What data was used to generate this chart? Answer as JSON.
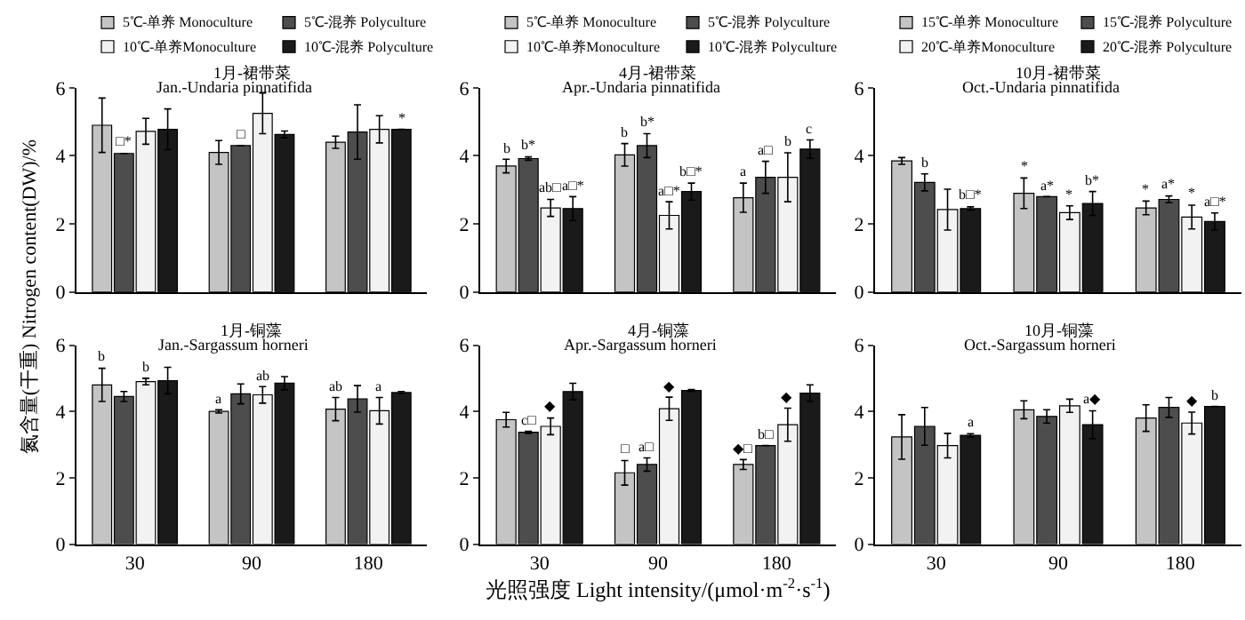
{
  "chart_data": [
    {
      "type": "bar",
      "title": "1月-裙带菜",
      "subtitle": "Jan.-Undaria pinnatifida",
      "ylabel": "氮含量(干重) Nitrogen content(DW)/%",
      "categories": [
        "30",
        "90",
        "180"
      ],
      "ylim": [
        0,
        6
      ],
      "yticks": [
        0,
        2,
        4,
        6
      ],
      "tick_labels": "y",
      "legend": "top",
      "series": [
        {
          "name": "5℃-单养 Monoculture",
          "color": "#c4c4c4",
          "values": [
            4.9,
            4.1,
            4.4
          ],
          "errors": [
            0.8,
            0.35,
            0.18
          ],
          "value_labels": [
            null,
            null,
            null
          ]
        },
        {
          "name": "5℃-混养 Polyculture",
          "color": "#4d4d4d",
          "values": [
            4.07,
            4.3,
            4.7
          ],
          "errors": [
            null,
            null,
            0.8
          ],
          "value_labels": [
            "□*",
            "□",
            null
          ]
        },
        {
          "name": "10℃-单养Monoculture",
          "color": "#f2f2f2",
          "values": [
            4.72,
            5.25,
            4.78
          ],
          "errors": [
            0.38,
            0.6,
            0.4
          ],
          "value_labels": [
            null,
            null,
            null
          ]
        },
        {
          "name": "10℃-混养 Polyculture",
          "color": "#1a1a1a",
          "values": [
            4.78,
            4.63,
            4.78
          ],
          "errors": [
            0.6,
            0.1,
            null
          ],
          "value_labels": [
            null,
            null,
            "*"
          ]
        }
      ]
    },
    {
      "type": "bar",
      "title": "4月-裙带菜",
      "subtitle": "Apr.-Undaria pinnatifida",
      "categories": [
        "30",
        "90",
        "180"
      ],
      "ylim": [
        0,
        6
      ],
      "yticks": [
        0,
        2,
        4,
        6
      ],
      "tick_labels": "y",
      "legend": "top",
      "series": [
        {
          "name": "5℃-单养 Monoculture",
          "color": "#c4c4c4",
          "values": [
            3.7,
            4.03,
            2.77
          ],
          "errors": [
            0.2,
            0.33,
            0.43
          ],
          "value_labels": [
            "b",
            "b",
            "a"
          ]
        },
        {
          "name": "5℃-混养 Polyculture",
          "color": "#4d4d4d",
          "values": [
            3.92,
            4.3,
            3.37
          ],
          "errors": [
            0.05,
            0.35,
            0.47
          ],
          "value_labels": [
            "b*",
            "b*",
            "a□"
          ]
        },
        {
          "name": "10℃-单养Monoculture",
          "color": "#f2f2f2",
          "values": [
            2.47,
            2.25,
            3.37
          ],
          "errors": [
            0.25,
            0.4,
            0.72
          ],
          "value_labels": [
            "ab□",
            "a□*",
            "b"
          ]
        },
        {
          "name": "10℃-混养 Polyculture",
          "color": "#1a1a1a",
          "values": [
            2.45,
            2.95,
            4.2
          ],
          "errors": [
            0.35,
            0.25,
            0.27
          ],
          "value_labels": [
            "a□*",
            "b□*",
            "c"
          ]
        }
      ]
    },
    {
      "type": "bar",
      "title": "10月-裙带菜",
      "subtitle": "Oct.-Undaria pinnatifida",
      "categories": [
        "30",
        "90",
        "180"
      ],
      "ylim": [
        0,
        6
      ],
      "yticks": [
        0,
        2,
        4,
        6
      ],
      "tick_labels": "y",
      "legend": "top",
      "series": [
        {
          "name": "15℃-单养 Monoculture",
          "color": "#c4c4c4",
          "values": [
            3.85,
            2.9,
            2.47
          ],
          "errors": [
            0.1,
            0.45,
            0.2
          ],
          "value_labels": [
            null,
            "*",
            "*"
          ]
        },
        {
          "name": "15℃-混养 Polyculture",
          "color": "#4d4d4d",
          "values": [
            3.22,
            2.8,
            2.72
          ],
          "errors": [
            0.25,
            null,
            0.1
          ],
          "value_labels": [
            "b",
            "a*",
            "a*"
          ]
        },
        {
          "name": "20℃-单养Monoculture",
          "color": "#f2f2f2",
          "values": [
            2.42,
            2.33,
            2.2
          ],
          "errors": [
            0.6,
            0.2,
            0.35
          ],
          "value_labels": [
            null,
            "*",
            "*"
          ]
        },
        {
          "name": "20℃-混养 Polyculture",
          "color": "#1a1a1a",
          "values": [
            2.45,
            2.6,
            2.07
          ],
          "errors": [
            0.05,
            0.35,
            0.25
          ],
          "value_labels": [
            "b□*",
            "b*",
            "a□*"
          ]
        }
      ]
    },
    {
      "type": "bar",
      "title": "1月-铜藻",
      "subtitle": "Jan.-Sargassum horneri",
      "categories": [
        "30",
        "90",
        "180"
      ],
      "ylim": [
        0,
        6
      ],
      "yticks": [
        0,
        2,
        4,
        6
      ],
      "series": [
        {
          "color": "#c4c4c4",
          "values": [
            4.8,
            4.0,
            4.07
          ],
          "errors": [
            0.5,
            0.05,
            0.35
          ],
          "value_labels": [
            "b",
            "a",
            "ab"
          ]
        },
        {
          "color": "#4d4d4d",
          "values": [
            4.45,
            4.53,
            4.38
          ],
          "errors": [
            0.15,
            0.3,
            0.4
          ],
          "value_labels": [
            null,
            null,
            null
          ]
        },
        {
          "color": "#f2f2f2",
          "values": [
            4.9,
            4.5,
            4.02
          ],
          "errors": [
            0.1,
            0.25,
            0.4
          ],
          "value_labels": [
            "b",
            "ab",
            "a"
          ]
        },
        {
          "color": "#1a1a1a",
          "values": [
            4.93,
            4.85,
            4.57
          ],
          "errors": [
            0.4,
            0.2,
            0.03
          ],
          "value_labels": [
            null,
            null,
            null
          ]
        }
      ]
    },
    {
      "type": "bar",
      "title": "4月-铜藻",
      "subtitle": "Apr.-Sargassum horneri",
      "xlabel": "光照强度 Light intensity/(μmol·m$^{-2}$·s$^{-1}$)",
      "categories": [
        "30",
        "90",
        "180"
      ],
      "ylim": [
        0,
        6
      ],
      "yticks": [
        0,
        2,
        4,
        6
      ],
      "series": [
        {
          "color": "#c4c4c4",
          "values": [
            3.75,
            2.15,
            2.4
          ],
          "errors": [
            0.22,
            0.37,
            0.15
          ],
          "value_labels": [
            null,
            "□",
            "◆□"
          ]
        },
        {
          "color": "#4d4d4d",
          "values": [
            3.37,
            2.4,
            2.97
          ],
          "errors": [
            0.03,
            0.2,
            null
          ],
          "value_labels": [
            "c□",
            "a□",
            "b□"
          ]
        },
        {
          "color": "#f2f2f2",
          "values": [
            3.55,
            4.08,
            3.6
          ],
          "errors": [
            0.25,
            0.35,
            0.5
          ],
          "value_labels": [
            "◆",
            "◆",
            "◆"
          ]
        },
        {
          "color": "#1a1a1a",
          "values": [
            4.6,
            4.63,
            4.55
          ],
          "errors": [
            0.25,
            0.03,
            0.25
          ],
          "value_labels": [
            null,
            null,
            null
          ]
        }
      ]
    },
    {
      "type": "bar",
      "title": "10月-铜藻",
      "subtitle": "Oct.-Sargassum horneri",
      "categories": [
        "30",
        "90",
        "180"
      ],
      "ylim": [
        0,
        6
      ],
      "yticks": [
        0,
        2,
        4,
        6
      ],
      "series": [
        {
          "color": "#c4c4c4",
          "values": [
            3.23,
            4.05,
            3.8
          ],
          "errors": [
            0.67,
            0.27,
            0.4
          ],
          "value_labels": [
            null,
            null,
            null
          ]
        },
        {
          "color": "#4d4d4d",
          "values": [
            3.55,
            3.85,
            4.12
          ],
          "errors": [
            0.57,
            0.2,
            0.3
          ],
          "value_labels": [
            null,
            null,
            null
          ]
        },
        {
          "color": "#f2f2f2",
          "values": [
            2.97,
            4.17,
            3.65
          ],
          "errors": [
            0.37,
            0.2,
            0.33
          ],
          "value_labels": [
            null,
            null,
            "◆"
          ]
        },
        {
          "color": "#1a1a1a",
          "values": [
            3.28,
            3.6,
            4.15
          ],
          "errors": [
            0.05,
            0.42,
            null
          ],
          "value_labels": [
            "a",
            "a◆",
            "b"
          ]
        }
      ]
    }
  ]
}
